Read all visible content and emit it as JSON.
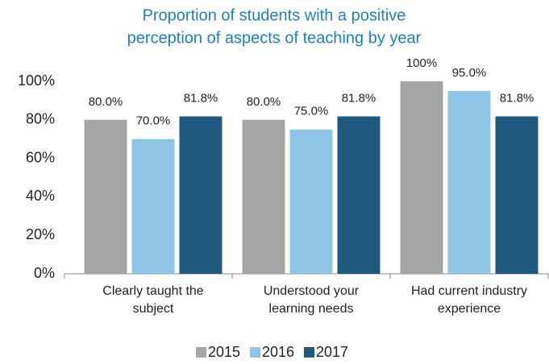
{
  "chart_data": {
    "type": "bar",
    "title": [
      "Proportion of students with a positive",
      "perception of aspects of teaching by year"
    ],
    "categories": [
      [
        "Clearly taught the",
        "subject"
      ],
      [
        "Understood your",
        "learning needs"
      ],
      [
        "Had current industry",
        "experience"
      ]
    ],
    "series": [
      {
        "name": "2015",
        "color": "#a5a5a5",
        "values": [
          80,
          80,
          100
        ],
        "value_labels": [
          "80.0%",
          "80.0%",
          "100%"
        ]
      },
      {
        "name": "2016",
        "color": "#8ec4e6",
        "values": [
          70,
          75,
          95
        ],
        "value_labels": [
          "70.0%",
          "75.0%",
          "95.0%"
        ]
      },
      {
        "name": "2017",
        "color": "#1f5a7e",
        "values": [
          81.8,
          81.8,
          81.8
        ],
        "value_labels": [
          "81.8%",
          "81.8%",
          "81.8%"
        ]
      }
    ],
    "ylim": [
      0,
      100
    ],
    "yticks": [
      {
        "value": 0,
        "label": "0%"
      },
      {
        "value": 20,
        "label": "20%"
      },
      {
        "value": 40,
        "label": "40%"
      },
      {
        "value": 60,
        "label": "60%"
      },
      {
        "value": 80,
        "label": "80%"
      },
      {
        "value": 100,
        "label": "100%"
      }
    ],
    "legend": "bottom"
  }
}
